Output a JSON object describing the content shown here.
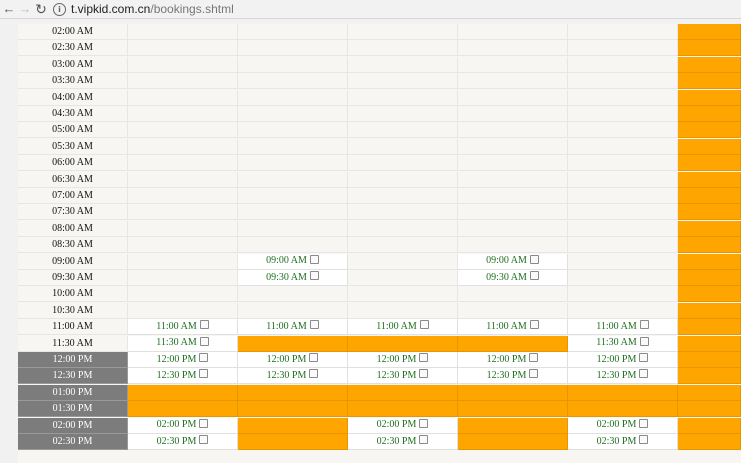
{
  "browser": {
    "back_icon": "arrow-left-icon",
    "forward_icon": "arrow-right-icon",
    "reload_icon": "reload-icon",
    "info_icon": "info-circle-icon",
    "url_domain": "t.vipkid.com.cn",
    "url_path": "/bookings.shtml"
  },
  "colors": {
    "booked": "#ffa500",
    "open": "#ffffff",
    "time_dark": "#7c7c7c",
    "slot_text": "#1e6e1e"
  },
  "schedule": {
    "rows": [
      {
        "time": "02:00 AM",
        "dark": false,
        "slots": [
          "",
          "",
          "",
          "",
          "",
          "booked"
        ]
      },
      {
        "time": "02:30 AM",
        "dark": false,
        "slots": [
          "",
          "",
          "",
          "",
          "",
          "booked"
        ]
      },
      {
        "time": "03:00 AM",
        "dark": false,
        "slots": [
          "",
          "",
          "",
          "",
          "",
          "booked"
        ]
      },
      {
        "time": "03:30 AM",
        "dark": false,
        "slots": [
          "",
          "",
          "",
          "",
          "",
          "booked"
        ]
      },
      {
        "time": "04:00 AM",
        "dark": false,
        "slots": [
          "",
          "",
          "",
          "",
          "",
          "booked"
        ]
      },
      {
        "time": "04:30 AM",
        "dark": false,
        "slots": [
          "",
          "",
          "",
          "",
          "",
          "booked"
        ]
      },
      {
        "time": "05:00 AM",
        "dark": false,
        "slots": [
          "",
          "",
          "",
          "",
          "",
          "booked"
        ]
      },
      {
        "time": "05:30 AM",
        "dark": false,
        "slots": [
          "",
          "",
          "",
          "",
          "",
          "booked"
        ]
      },
      {
        "time": "06:00 AM",
        "dark": false,
        "slots": [
          "",
          "",
          "",
          "",
          "",
          "booked"
        ]
      },
      {
        "time": "06:30 AM",
        "dark": false,
        "slots": [
          "",
          "",
          "",
          "",
          "",
          "booked"
        ]
      },
      {
        "time": "07:00 AM",
        "dark": false,
        "slots": [
          "",
          "",
          "",
          "",
          "",
          "booked"
        ]
      },
      {
        "time": "07:30 AM",
        "dark": false,
        "slots": [
          "",
          "",
          "",
          "",
          "",
          "booked"
        ]
      },
      {
        "time": "08:00 AM",
        "dark": false,
        "slots": [
          "",
          "",
          "",
          "",
          "",
          "booked"
        ]
      },
      {
        "time": "08:30 AM",
        "dark": false,
        "slots": [
          "",
          "",
          "",
          "",
          "",
          "booked"
        ]
      },
      {
        "time": "09:00 AM",
        "dark": false,
        "slots": [
          "",
          "open",
          "",
          "open",
          "",
          "booked"
        ]
      },
      {
        "time": "09:30 AM",
        "dark": false,
        "slots": [
          "",
          "open",
          "",
          "open",
          "",
          "booked"
        ]
      },
      {
        "time": "10:00 AM",
        "dark": false,
        "slots": [
          "",
          "",
          "",
          "",
          "",
          "booked"
        ]
      },
      {
        "time": "10:30 AM",
        "dark": false,
        "slots": [
          "",
          "",
          "",
          "",
          "",
          "booked"
        ]
      },
      {
        "time": "11:00 AM",
        "dark": false,
        "slots": [
          "open",
          "open",
          "open",
          "open",
          "open",
          "booked"
        ]
      },
      {
        "time": "11:30 AM",
        "dark": false,
        "slots": [
          "open",
          "booked",
          "booked",
          "booked",
          "open",
          "booked"
        ]
      },
      {
        "time": "12:00 PM",
        "dark": true,
        "slots": [
          "open",
          "open",
          "open",
          "open",
          "open",
          "booked"
        ]
      },
      {
        "time": "12:30 PM",
        "dark": true,
        "slots": [
          "open",
          "open",
          "open",
          "open",
          "open",
          "booked"
        ]
      },
      {
        "time": "01:00 PM",
        "dark": true,
        "slots": [
          "booked",
          "booked",
          "booked",
          "booked",
          "booked",
          "booked"
        ]
      },
      {
        "time": "01:30 PM",
        "dark": true,
        "slots": [
          "booked",
          "booked",
          "booked",
          "booked",
          "booked",
          "booked"
        ]
      },
      {
        "time": "02:00 PM",
        "dark": true,
        "slots": [
          "open",
          "booked",
          "open",
          "booked",
          "open",
          "booked"
        ]
      },
      {
        "time": "02:30 PM",
        "dark": true,
        "slots": [
          "open",
          "booked",
          "open",
          "booked",
          "open",
          "booked"
        ]
      }
    ]
  }
}
